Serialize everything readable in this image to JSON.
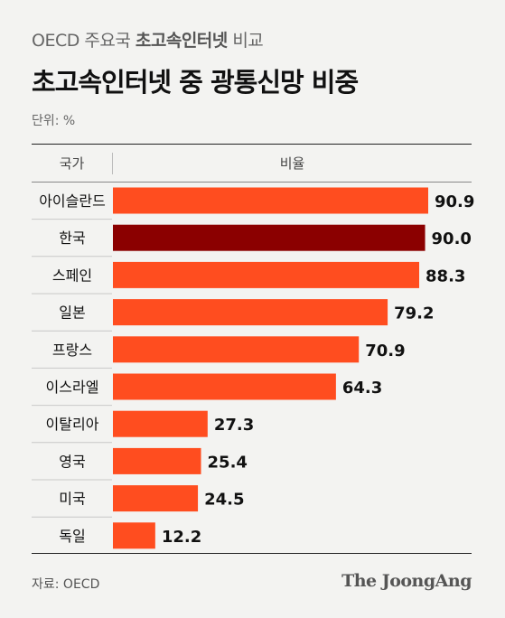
{
  "subtitle_prefix": "OECD 주요국",
  "subtitle_strong": "초고속인터넷",
  "subtitle_suffix": "비교",
  "title": "초고속인터넷 중 광통신망 비중",
  "unit": "단위: %",
  "table_header": {
    "country": "국가",
    "ratio": "비율"
  },
  "source": "자료: OECD",
  "logo": "The JoongAng",
  "colors": {
    "bar": "#ff4d1f",
    "highlight": "#8b0000"
  },
  "chart_data": {
    "type": "bar",
    "orientation": "horizontal",
    "categories": [
      "아이슬란드",
      "한국",
      "스페인",
      "일본",
      "프랑스",
      "이스라엘",
      "이탈리아",
      "영국",
      "미국",
      "독일"
    ],
    "values": [
      90.9,
      90.0,
      88.3,
      79.2,
      70.9,
      64.3,
      27.3,
      25.4,
      24.5,
      12.2
    ],
    "highlight": "한국",
    "title": "초고속인터넷 중 광통신망 비중",
    "xlim": [
      0,
      100
    ],
    "grid": false,
    "legend": "none"
  }
}
